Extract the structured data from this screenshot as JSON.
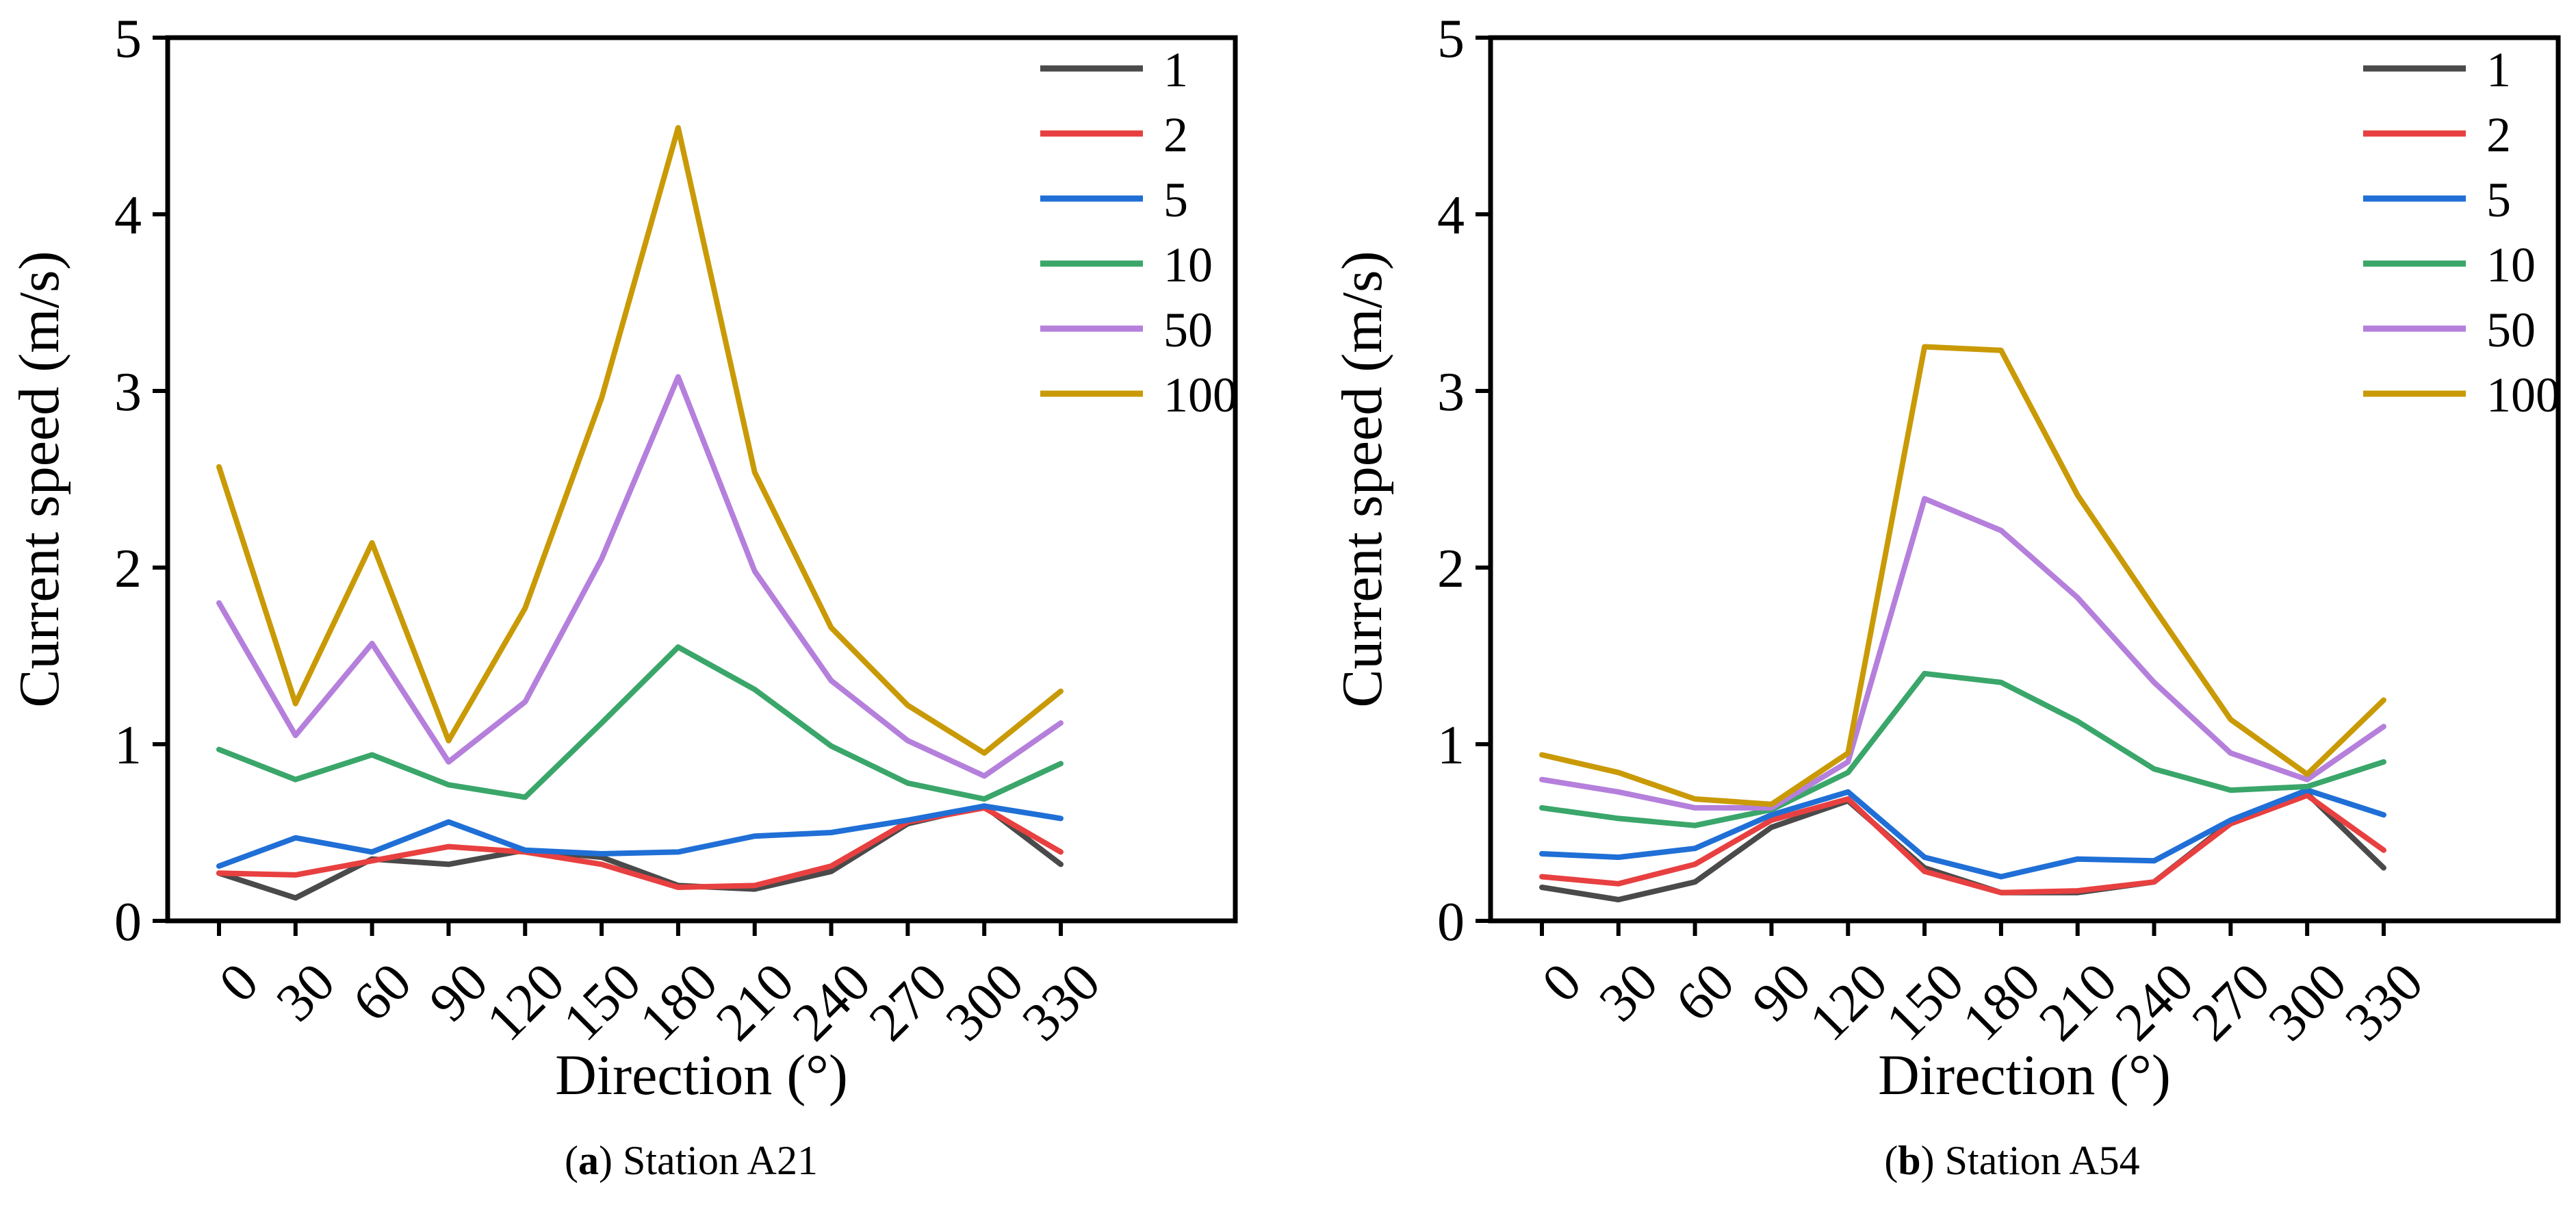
{
  "chart_data": [
    {
      "type": "line",
      "caption_letter": "a",
      "caption_text": " Station A21",
      "xlabel": "Direction (°)",
      "ylabel": "Current speed (m/s)",
      "x": [
        0,
        30,
        60,
        90,
        120,
        150,
        180,
        210,
        240,
        270,
        300,
        330
      ],
      "x_tick_labels": [
        "0",
        "30",
        "60",
        "90",
        "120",
        "150",
        "180",
        "210",
        "240",
        "270",
        "300",
        "330"
      ],
      "y_ticks": [
        0,
        1,
        2,
        3,
        4,
        5
      ],
      "y_tick_labels": [
        "0",
        "1",
        "2",
        "3",
        "4",
        "5"
      ],
      "ylim": [
        0,
        5
      ],
      "legend_position": "top-right",
      "series": [
        {
          "name": "1",
          "color": "#4a4a4a",
          "values": [
            0.27,
            0.13,
            0.35,
            0.32,
            0.4,
            0.36,
            0.2,
            0.18,
            0.28,
            0.55,
            0.65,
            0.32
          ]
        },
        {
          "name": "2",
          "color": "#e84040",
          "values": [
            0.27,
            0.26,
            0.34,
            0.42,
            0.39,
            0.32,
            0.19,
            0.2,
            0.31,
            0.56,
            0.64,
            0.39
          ]
        },
        {
          "name": "5",
          "color": "#1f6fd6",
          "values": [
            0.31,
            0.47,
            0.39,
            0.56,
            0.4,
            0.38,
            0.39,
            0.48,
            0.5,
            0.57,
            0.65,
            0.58
          ]
        },
        {
          "name": "10",
          "color": "#3aa66a",
          "values": [
            0.97,
            0.8,
            0.94,
            0.77,
            0.7,
            1.12,
            1.55,
            1.31,
            0.99,
            0.78,
            0.69,
            0.89
          ]
        },
        {
          "name": "50",
          "color": "#b57fdc",
          "values": [
            1.8,
            1.05,
            1.57,
            0.9,
            1.24,
            2.05,
            3.08,
            1.98,
            1.36,
            1.02,
            0.82,
            1.12
          ]
        },
        {
          "name": "100",
          "color": "#c99a06",
          "values": [
            2.57,
            1.23,
            2.14,
            1.02,
            1.77,
            2.96,
            4.49,
            2.54,
            1.66,
            1.22,
            0.95,
            1.3
          ]
        }
      ]
    },
    {
      "type": "line",
      "caption_letter": "b",
      "caption_text": " Station A54",
      "xlabel": "Direction (°)",
      "ylabel": "Current speed (m/s)",
      "x": [
        0,
        30,
        60,
        90,
        120,
        150,
        180,
        210,
        240,
        270,
        300,
        330
      ],
      "x_tick_labels": [
        "0",
        "30",
        "60",
        "90",
        "120",
        "150",
        "180",
        "210",
        "240",
        "270",
        "300",
        "330"
      ],
      "y_ticks": [
        0,
        1,
        2,
        3,
        4,
        5
      ],
      "y_tick_labels": [
        "0",
        "1",
        "2",
        "3",
        "4",
        "5"
      ],
      "ylim": [
        0,
        5
      ],
      "legend_position": "top-right",
      "series": [
        {
          "name": "1",
          "color": "#4a4a4a",
          "values": [
            0.19,
            0.12,
            0.22,
            0.53,
            0.68,
            0.3,
            0.16,
            0.16,
            0.22,
            0.56,
            0.72,
            0.3
          ]
        },
        {
          "name": "2",
          "color": "#e84040",
          "values": [
            0.25,
            0.21,
            0.32,
            0.57,
            0.69,
            0.28,
            0.16,
            0.17,
            0.22,
            0.55,
            0.71,
            0.4
          ]
        },
        {
          "name": "5",
          "color": "#1f6fd6",
          "values": [
            0.38,
            0.36,
            0.41,
            0.6,
            0.73,
            0.36,
            0.25,
            0.35,
            0.34,
            0.57,
            0.74,
            0.6
          ]
        },
        {
          "name": "10",
          "color": "#3aa66a",
          "values": [
            0.64,
            0.58,
            0.54,
            0.63,
            0.84,
            1.4,
            1.35,
            1.13,
            0.86,
            0.74,
            0.76,
            0.9
          ]
        },
        {
          "name": "50",
          "color": "#b57fdc",
          "values": [
            0.8,
            0.73,
            0.64,
            0.64,
            0.9,
            2.39,
            2.21,
            1.83,
            1.35,
            0.95,
            0.8,
            1.1
          ]
        },
        {
          "name": "100",
          "color": "#c99a06",
          "values": [
            0.94,
            0.84,
            0.69,
            0.66,
            0.95,
            3.25,
            3.23,
            2.41,
            1.77,
            1.14,
            0.83,
            1.25
          ]
        }
      ]
    }
  ]
}
